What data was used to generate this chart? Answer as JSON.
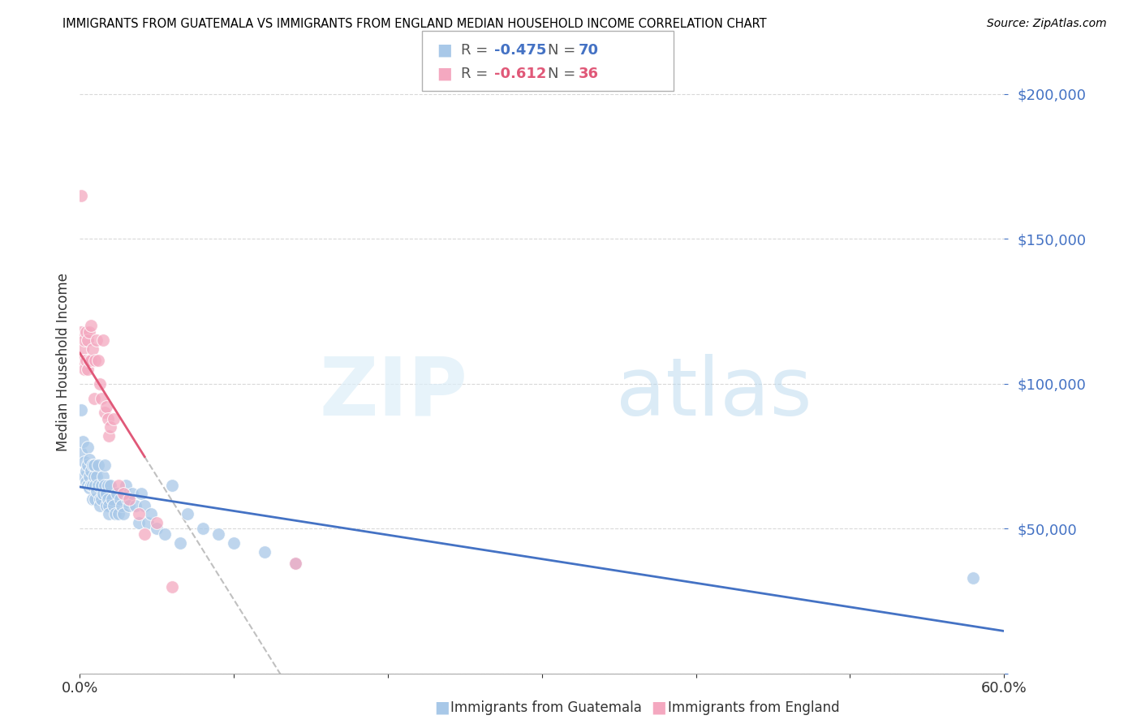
{
  "title": "IMMIGRANTS FROM GUATEMALA VS IMMIGRANTS FROM ENGLAND MEDIAN HOUSEHOLD INCOME CORRELATION CHART",
  "source": "Source: ZipAtlas.com",
  "ylabel": "Median Household Income",
  "xlim": [
    0.0,
    0.6
  ],
  "ylim": [
    0,
    215000
  ],
  "yticks": [
    0,
    50000,
    100000,
    150000,
    200000
  ],
  "guatemala_color": "#a8c8e8",
  "england_color": "#f4a8c0",
  "guatemala_line_color": "#4472c4",
  "england_line_color": "#e05878",
  "legend_r_guat": "-0.475",
  "legend_n_guat": "70",
  "legend_r_eng": "-0.612",
  "legend_n_eng": "36",
  "background_color": "#ffffff",
  "grid_color": "#d0d0d0",
  "guatemala_x": [
    0.001,
    0.002,
    0.003,
    0.003,
    0.004,
    0.004,
    0.005,
    0.005,
    0.005,
    0.006,
    0.006,
    0.006,
    0.007,
    0.007,
    0.008,
    0.008,
    0.008,
    0.009,
    0.009,
    0.01,
    0.01,
    0.011,
    0.011,
    0.012,
    0.012,
    0.013,
    0.013,
    0.014,
    0.014,
    0.015,
    0.015,
    0.016,
    0.016,
    0.017,
    0.017,
    0.018,
    0.018,
    0.019,
    0.019,
    0.02,
    0.021,
    0.022,
    0.023,
    0.024,
    0.025,
    0.026,
    0.027,
    0.028,
    0.03,
    0.031,
    0.032,
    0.034,
    0.036,
    0.038,
    0.04,
    0.042,
    0.044,
    0.046,
    0.05,
    0.055,
    0.06,
    0.065,
    0.07,
    0.08,
    0.09,
    0.1,
    0.12,
    0.14,
    0.58,
    0.001
  ],
  "guatemala_y": [
    76000,
    80000,
    73000,
    68000,
    70000,
    66000,
    72000,
    65000,
    78000,
    74000,
    68000,
    64000,
    70000,
    65000,
    72000,
    65000,
    60000,
    68000,
    72000,
    65000,
    60000,
    68000,
    63000,
    72000,
    65000,
    60000,
    58000,
    65000,
    60000,
    68000,
    62000,
    72000,
    65000,
    62000,
    58000,
    65000,
    60000,
    58000,
    55000,
    65000,
    60000,
    58000,
    55000,
    62000,
    55000,
    60000,
    58000,
    55000,
    65000,
    60000,
    58000,
    62000,
    58000,
    52000,
    62000,
    58000,
    52000,
    55000,
    50000,
    48000,
    65000,
    45000,
    55000,
    50000,
    48000,
    45000,
    42000,
    38000,
    33000,
    91000
  ],
  "england_x": [
    0.001,
    0.002,
    0.002,
    0.003,
    0.003,
    0.004,
    0.004,
    0.005,
    0.005,
    0.006,
    0.006,
    0.007,
    0.007,
    0.008,
    0.009,
    0.01,
    0.011,
    0.012,
    0.013,
    0.014,
    0.015,
    0.016,
    0.017,
    0.018,
    0.019,
    0.02,
    0.022,
    0.025,
    0.028,
    0.032,
    0.038,
    0.042,
    0.05,
    0.06,
    0.14,
    0.001
  ],
  "england_y": [
    118000,
    112000,
    108000,
    115000,
    105000,
    118000,
    108000,
    115000,
    105000,
    118000,
    108000,
    120000,
    108000,
    112000,
    95000,
    108000,
    115000,
    108000,
    100000,
    95000,
    115000,
    90000,
    92000,
    88000,
    82000,
    85000,
    88000,
    65000,
    62000,
    60000,
    55000,
    48000,
    52000,
    30000,
    38000,
    165000
  ],
  "watermark_zip": "ZIP",
  "watermark_atlas": "atlas"
}
